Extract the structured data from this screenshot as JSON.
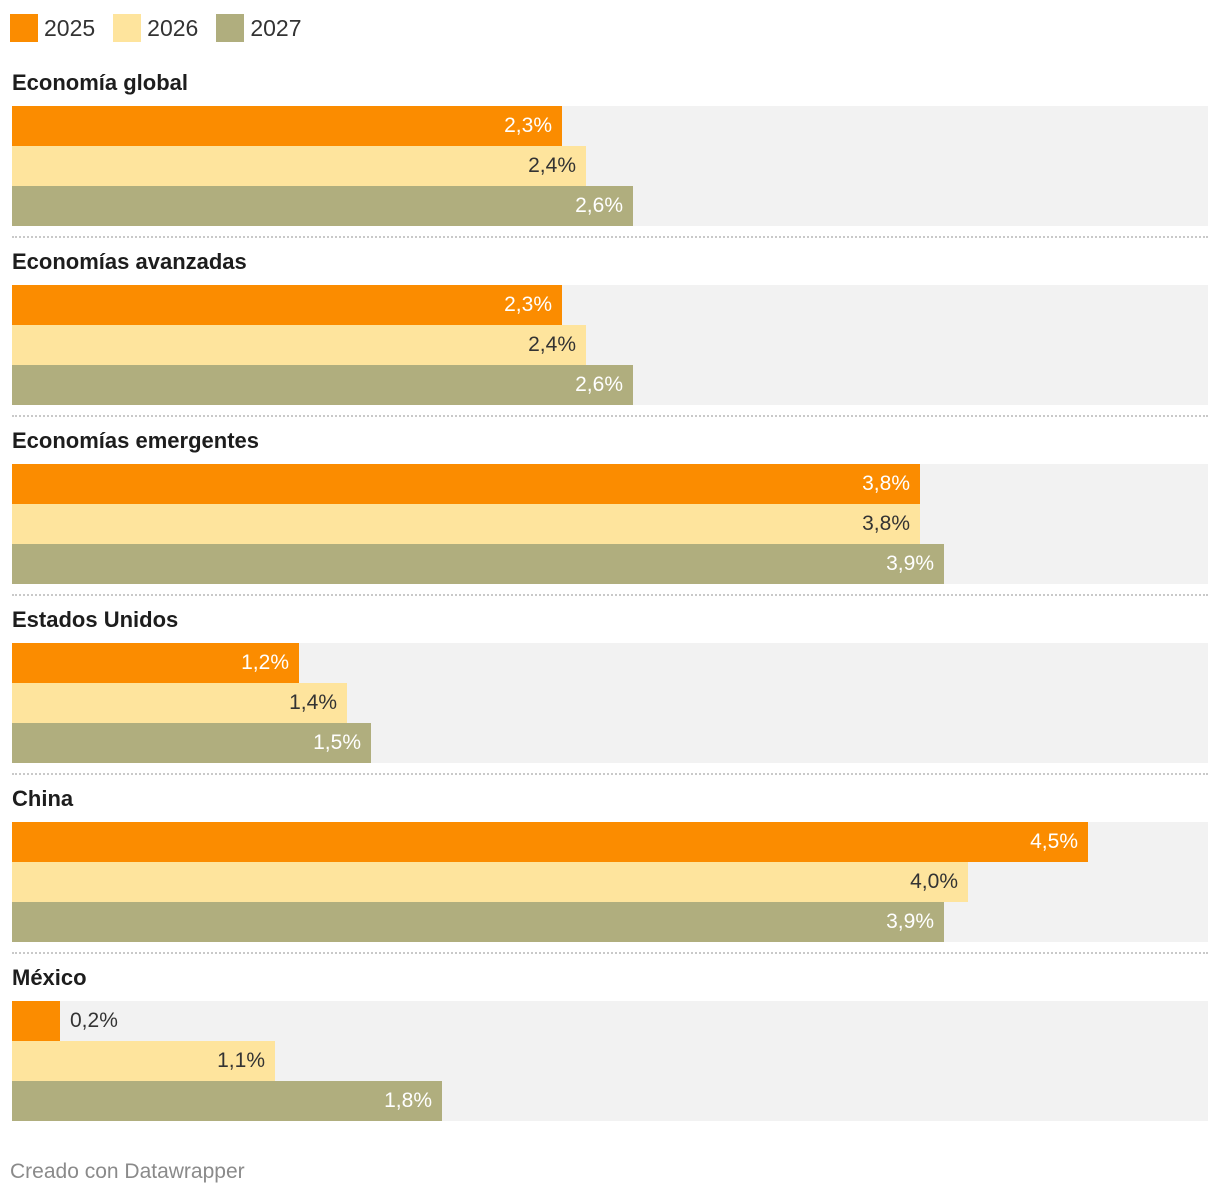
{
  "chart_data": {
    "type": "bar",
    "orientation": "horizontal",
    "categories": [
      "Economía global",
      "Economías avanzadas",
      "Economías emergentes",
      "Estados Unidos",
      "China",
      "México"
    ],
    "series": [
      {
        "name": "2025",
        "color": "#fb8c00",
        "label_color": "#ffffff",
        "values": [
          2.3,
          2.3,
          3.8,
          1.2,
          4.5,
          0.2
        ],
        "labels": [
          "2,3%",
          "2,3%",
          "3,8%",
          "1,2%",
          "4,5%",
          "0,2%"
        ]
      },
      {
        "name": "2026",
        "color": "#fee49d",
        "label_color": "#333333",
        "values": [
          2.4,
          2.4,
          3.8,
          1.4,
          4.0,
          1.1
        ],
        "labels": [
          "2,4%",
          "2,4%",
          "3,8%",
          "1,4%",
          "4,0%",
          "1,1%"
        ]
      },
      {
        "name": "2027",
        "color": "#b0ae7e",
        "label_color": "#ffffff",
        "values": [
          2.6,
          2.6,
          3.9,
          1.5,
          3.9,
          1.8
        ],
        "labels": [
          "2,6%",
          "2,6%",
          "3,9%",
          "1,5%",
          "3,9%",
          "1,8%"
        ]
      }
    ],
    "xlim": [
      0,
      5
    ],
    "grid": false,
    "legend_position": "top-left",
    "title": "",
    "xlabel": "",
    "ylabel": ""
  },
  "credit": "Creado con Datawrapper"
}
